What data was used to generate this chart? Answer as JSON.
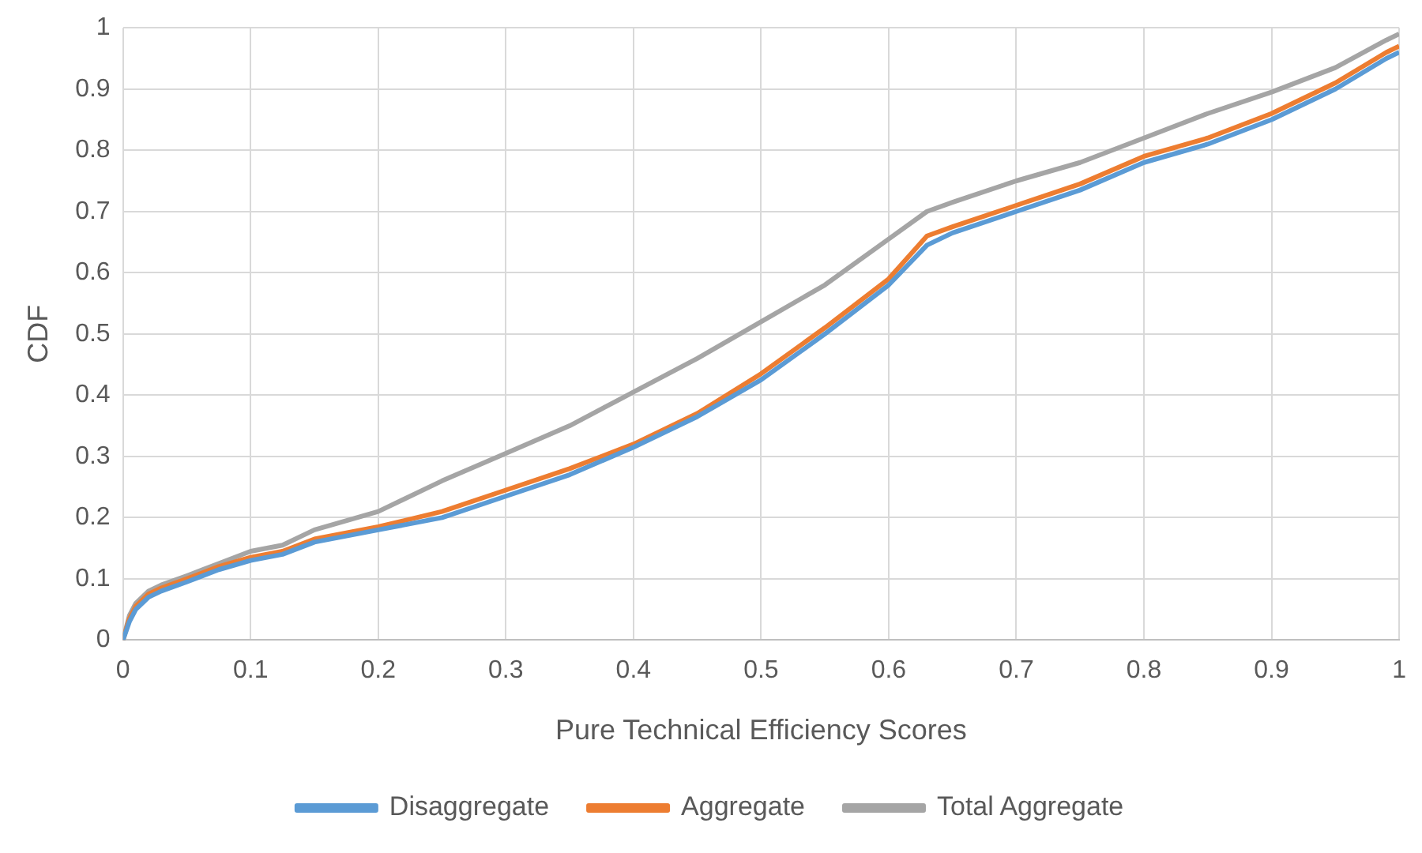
{
  "chart_data": {
    "type": "line",
    "xlabel": "Pure Technical Efficiency Scores",
    "ylabel": "CDF",
    "x": [
      0,
      0.005,
      0.01,
      0.02,
      0.03,
      0.05,
      0.075,
      0.1,
      0.125,
      0.15,
      0.2,
      0.25,
      0.3,
      0.35,
      0.4,
      0.45,
      0.5,
      0.55,
      0.6,
      0.63,
      0.65,
      0.7,
      0.75,
      0.8,
      0.85,
      0.9,
      0.95,
      0.99,
      1
    ],
    "series": [
      {
        "name": "Disaggregate",
        "color": "#5b9bd5",
        "values": [
          0,
          0.03,
          0.05,
          0.07,
          0.08,
          0.095,
          0.115,
          0.13,
          0.14,
          0.16,
          0.18,
          0.2,
          0.235,
          0.27,
          0.315,
          0.365,
          0.425,
          0.5,
          0.58,
          0.645,
          0.665,
          0.7,
          0.735,
          0.78,
          0.81,
          0.85,
          0.9,
          0.95,
          0.96
        ]
      },
      {
        "name": "Aggregate",
        "color": "#ed7d31",
        "values": [
          0,
          0.035,
          0.055,
          0.075,
          0.085,
          0.1,
          0.12,
          0.135,
          0.145,
          0.165,
          0.185,
          0.21,
          0.245,
          0.28,
          0.32,
          0.37,
          0.435,
          0.51,
          0.59,
          0.66,
          0.675,
          0.71,
          0.745,
          0.79,
          0.82,
          0.86,
          0.91,
          0.96,
          0.97
        ]
      },
      {
        "name": "Total Aggregate",
        "color": "#a5a5a5",
        "values": [
          0,
          0.04,
          0.06,
          0.08,
          0.09,
          0.105,
          0.125,
          0.145,
          0.155,
          0.18,
          0.21,
          0.26,
          0.305,
          0.35,
          0.405,
          0.46,
          0.52,
          0.58,
          0.655,
          0.7,
          0.715,
          0.75,
          0.78,
          0.82,
          0.86,
          0.895,
          0.935,
          0.98,
          0.99
        ]
      }
    ],
    "xlim": [
      0,
      1
    ],
    "xticks": [
      0,
      0.1,
      0.2,
      0.3,
      0.4,
      0.5,
      0.6,
      0.7,
      0.8,
      0.9,
      1
    ],
    "ylim": [
      0,
      1
    ],
    "yticks": [
      0,
      0.1,
      0.2,
      0.3,
      0.4,
      0.5,
      0.6,
      0.7,
      0.8,
      0.9,
      1
    ],
    "grid": true,
    "legend": "bottom",
    "marker": "none",
    "line_style": "solid"
  }
}
